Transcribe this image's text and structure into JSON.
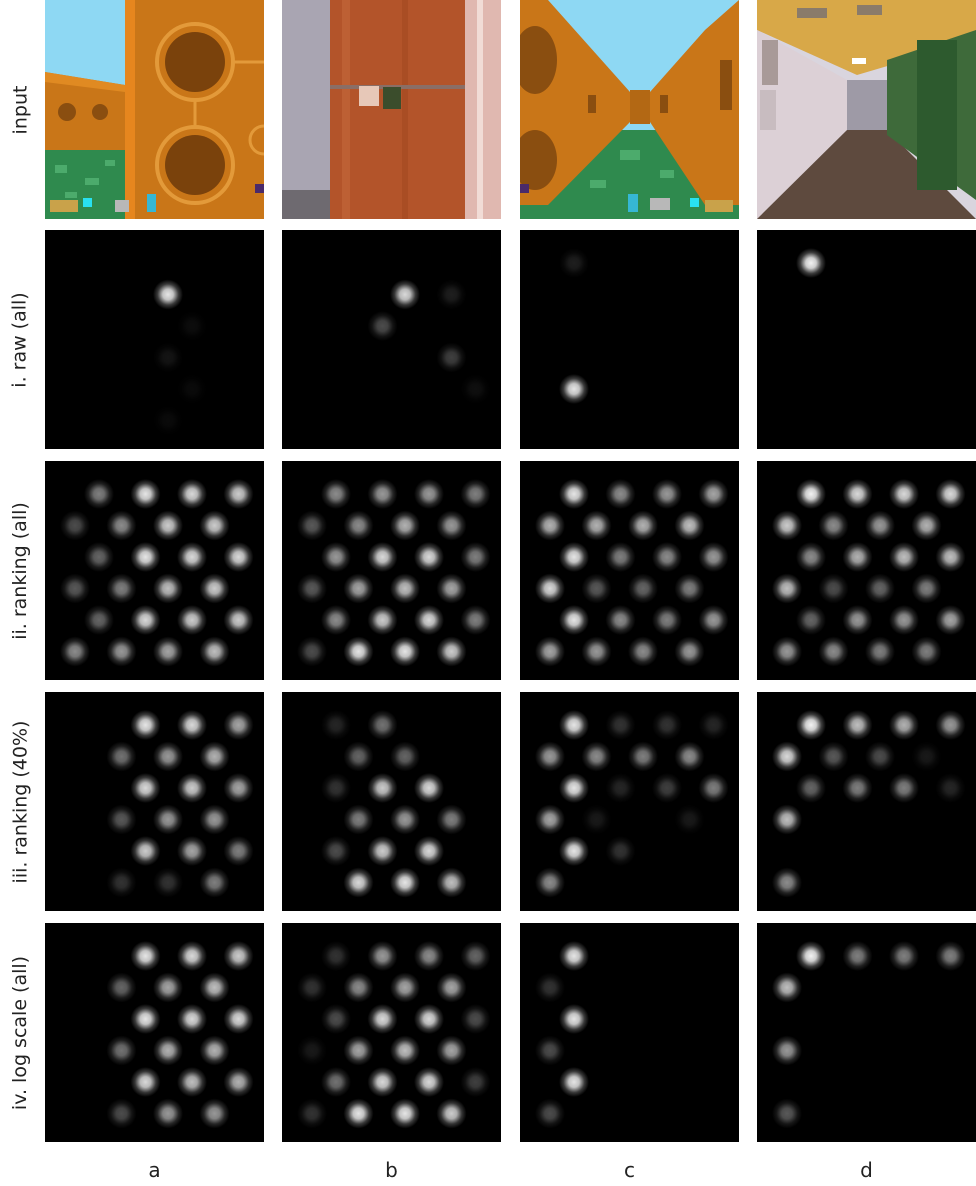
{
  "row_labels": [
    "input",
    "i. raw (all)",
    "ii. ranking (all)",
    "iii. ranking (40%)",
    "iv. log scale (all)"
  ],
  "col_labels": [
    "a",
    "b",
    "c",
    "d"
  ],
  "panels": {
    "a": {
      "raw": [
        [
          0,
          0,
          0,
          0
        ],
        [
          0,
          0,
          0.9,
          0
        ],
        [
          0,
          0,
          0.05,
          0
        ],
        [
          0,
          0,
          0.08,
          0
        ],
        [
          0,
          0,
          0.04,
          0
        ],
        [
          0,
          0,
          0.04,
          0
        ]
      ],
      "rankA": [
        [
          0.5,
          0.9,
          0.85,
          0.8
        ],
        [
          0.3,
          0.55,
          0.8,
          0.8
        ],
        [
          0.4,
          0.9,
          0.85,
          0.85
        ],
        [
          0.35,
          0.5,
          0.75,
          0.8
        ],
        [
          0.4,
          0.85,
          0.8,
          0.8
        ],
        [
          0.55,
          0.6,
          0.65,
          0.75
        ]
      ],
      "rank40": [
        [
          0,
          0.9,
          0.85,
          0.65
        ],
        [
          0,
          0.45,
          0.6,
          0.7
        ],
        [
          0,
          0.85,
          0.8,
          0.65
        ],
        [
          0,
          0.35,
          0.6,
          0.6
        ],
        [
          0,
          0.8,
          0.65,
          0.5
        ],
        [
          0,
          0.2,
          0.2,
          0.5
        ]
      ],
      "log": [
        [
          0,
          0.9,
          0.85,
          0.8
        ],
        [
          0,
          0.4,
          0.65,
          0.75
        ],
        [
          0,
          0.9,
          0.85,
          0.85
        ],
        [
          0,
          0.45,
          0.7,
          0.7
        ],
        [
          0,
          0.85,
          0.75,
          0.7
        ],
        [
          0,
          0.3,
          0.6,
          0.6
        ]
      ]
    },
    "b": {
      "raw": [
        [
          0,
          0,
          0,
          0
        ],
        [
          0,
          0,
          0.85,
          0.12
        ],
        [
          0,
          0.3,
          0,
          0
        ],
        [
          0,
          0,
          0,
          0.25
        ],
        [
          0,
          0,
          0,
          0.06
        ],
        [
          0,
          0,
          0,
          0
        ]
      ],
      "rankA": [
        [
          0.55,
          0.6,
          0.6,
          0.5
        ],
        [
          0.35,
          0.55,
          0.7,
          0.6
        ],
        [
          0.6,
          0.85,
          0.85,
          0.5
        ],
        [
          0.35,
          0.65,
          0.75,
          0.65
        ],
        [
          0.55,
          0.8,
          0.85,
          0.5
        ],
        [
          0.3,
          0.9,
          0.9,
          0.8
        ]
      ],
      "rank40": [
        [
          0.15,
          0.45,
          0,
          0
        ],
        [
          0,
          0.4,
          0.4,
          0
        ],
        [
          0.2,
          0.8,
          0.85,
          0
        ],
        [
          0,
          0.5,
          0.6,
          0.5
        ],
        [
          0.3,
          0.8,
          0.85,
          0
        ],
        [
          0,
          0.85,
          0.9,
          0.75
        ]
      ],
      "log": [
        [
          0.2,
          0.6,
          0.55,
          0.4
        ],
        [
          0.2,
          0.55,
          0.65,
          0.65
        ],
        [
          0.3,
          0.85,
          0.85,
          0.3
        ],
        [
          0.1,
          0.65,
          0.75,
          0.65
        ],
        [
          0.45,
          0.85,
          0.85,
          0.25
        ],
        [
          0.2,
          0.9,
          0.9,
          0.8
        ]
      ]
    },
    "c": {
      "raw": [
        [
          0.12,
          0,
          0,
          0
        ],
        [
          0,
          0,
          0,
          0
        ],
        [
          0,
          0,
          0,
          0
        ],
        [
          0,
          0,
          0,
          0
        ],
        [
          0.9,
          0,
          0,
          0
        ],
        [
          0,
          0,
          0,
          0
        ]
      ],
      "rankA": [
        [
          0.9,
          0.55,
          0.6,
          0.65
        ],
        [
          0.7,
          0.7,
          0.7,
          0.75
        ],
        [
          0.9,
          0.5,
          0.55,
          0.6
        ],
        [
          0.85,
          0.35,
          0.4,
          0.5
        ],
        [
          0.9,
          0.55,
          0.5,
          0.6
        ],
        [
          0.65,
          0.6,
          0.55,
          0.6
        ]
      ],
      "rank40": [
        [
          0.9,
          0.2,
          0.2,
          0.15
        ],
        [
          0.6,
          0.55,
          0.5,
          0.55
        ],
        [
          0.9,
          0.15,
          0.25,
          0.5
        ],
        [
          0.65,
          0.1,
          0,
          0.1
        ],
        [
          0.9,
          0.2,
          0,
          0
        ],
        [
          0.55,
          0,
          0,
          0
        ]
      ],
      "log": [
        [
          0.9,
          0,
          0,
          0
        ],
        [
          0.2,
          0,
          0,
          0
        ],
        [
          0.9,
          0,
          0,
          0
        ],
        [
          0.3,
          0,
          0,
          0
        ],
        [
          0.9,
          0,
          0,
          0
        ],
        [
          0.3,
          0,
          0,
          0
        ]
      ]
    },
    "d": {
      "raw": [
        [
          0.95,
          0,
          0,
          0
        ],
        [
          0,
          0,
          0,
          0
        ],
        [
          0,
          0,
          0,
          0
        ],
        [
          0,
          0,
          0,
          0
        ],
        [
          0,
          0,
          0,
          0
        ],
        [
          0,
          0,
          0,
          0
        ]
      ],
      "rankA": [
        [
          0.95,
          0.85,
          0.85,
          0.85
        ],
        [
          0.8,
          0.55,
          0.6,
          0.7
        ],
        [
          0.55,
          0.7,
          0.75,
          0.75
        ],
        [
          0.75,
          0.3,
          0.4,
          0.5
        ],
        [
          0.4,
          0.6,
          0.6,
          0.65
        ],
        [
          0.6,
          0.55,
          0.5,
          0.5
        ]
      ],
      "rank40": [
        [
          0.95,
          0.75,
          0.7,
          0.6
        ],
        [
          0.85,
          0.35,
          0.3,
          0.1
        ],
        [
          0.4,
          0.5,
          0.5,
          0.15
        ],
        [
          0.75,
          0,
          0,
          0
        ],
        [
          0,
          0,
          0,
          0
        ],
        [
          0.55,
          0,
          0,
          0
        ]
      ],
      "log": [
        [
          0.95,
          0.5,
          0.5,
          0.5
        ],
        [
          0.75,
          0,
          0,
          0
        ],
        [
          0,
          0,
          0,
          0
        ],
        [
          0.6,
          0,
          0,
          0
        ],
        [
          0,
          0,
          0,
          0
        ],
        [
          0.35,
          0,
          0,
          0
        ]
      ]
    }
  }
}
